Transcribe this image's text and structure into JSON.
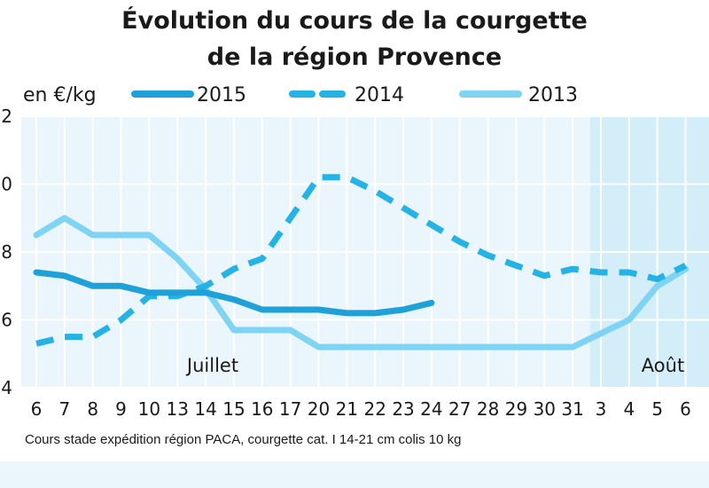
{
  "chart_data": {
    "type": "line",
    "title_lines": [
      "Évolution du cours de la courgette",
      "de la région Provence"
    ],
    "ylabel": "en €/kg",
    "y_ticks": [
      "2",
      "0",
      "8",
      "6",
      "4"
    ],
    "ylim": [
      0.4,
      1.2
    ],
    "grid": true,
    "legend_placement": "top",
    "categories": [
      "6",
      "7",
      "8",
      "9",
      "10",
      "13",
      "14",
      "15",
      "16",
      "17",
      "20",
      "21",
      "22",
      "23",
      "24",
      "27",
      "28",
      "29",
      "30",
      "31",
      "3",
      "4",
      "5",
      "6"
    ],
    "months": [
      {
        "label": "Juillet",
        "from_index": 0,
        "to_index": 19
      },
      {
        "label": "Août",
        "from_index": 20,
        "to_index": 23
      }
    ],
    "series": [
      {
        "name": "2015",
        "style": "solid-thick",
        "color": "#1ea0d8",
        "values": [
          0.74,
          0.73,
          0.7,
          0.7,
          0.68,
          0.68,
          0.68,
          0.66,
          0.63,
          0.63,
          0.63,
          0.62,
          0.62,
          0.63,
          0.65,
          null,
          null,
          null,
          null,
          null,
          null,
          null,
          null,
          null
        ]
      },
      {
        "name": "2014",
        "style": "dashed",
        "color": "#25b3e6",
        "values": [
          0.53,
          0.55,
          0.55,
          0.6,
          0.67,
          0.67,
          0.7,
          0.75,
          0.78,
          0.9,
          1.02,
          1.02,
          0.98,
          0.93,
          0.88,
          0.83,
          0.79,
          0.76,
          0.73,
          0.75,
          0.74,
          0.74,
          0.72,
          0.76
        ]
      },
      {
        "name": "2013",
        "style": "solid",
        "color": "#7fd3f3",
        "values": [
          0.85,
          0.9,
          0.85,
          0.85,
          0.85,
          0.78,
          0.69,
          0.57,
          0.57,
          0.57,
          0.52,
          0.52,
          0.52,
          0.52,
          0.52,
          0.52,
          0.52,
          0.52,
          0.52,
          0.52,
          0.56,
          0.6,
          0.7,
          0.75
        ]
      }
    ],
    "colors": {
      "plot_background": "#eaf6fc",
      "august_band": "#d3edf9",
      "footer_band": "#eaf6fc",
      "grid": "#ffffff"
    }
  },
  "source_note": "Cours stade expédition région PACA, courgette cat. I 14-21 cm colis 10 kg"
}
